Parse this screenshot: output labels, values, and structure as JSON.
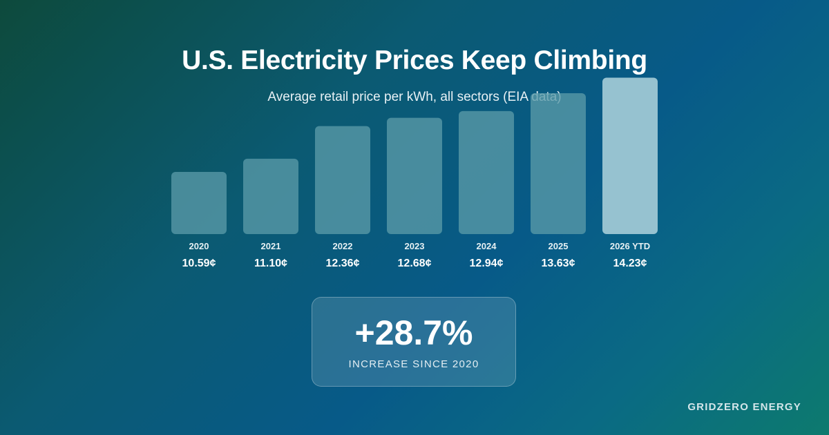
{
  "header": {
    "title": "U.S. Electricity Prices Keep Climbing",
    "subtitle": "Average retail price per kWh, all sectors (EIA data)"
  },
  "chart_data": {
    "type": "bar",
    "categories": [
      "2020",
      "2021",
      "2022",
      "2023",
      "2024",
      "2025",
      "2026 YTD"
    ],
    "values": [
      10.59,
      11.1,
      12.36,
      12.68,
      12.94,
      13.63,
      14.23
    ],
    "value_labels": [
      "10.59¢",
      "11.10¢",
      "12.36¢",
      "12.68¢",
      "12.94¢",
      "13.63¢",
      "14.23¢"
    ],
    "unit": "¢",
    "highlight_index": 6,
    "colors": {
      "bar": "#5a9aa8",
      "highlight_bar": "#96c2d0"
    },
    "grid": false,
    "legend": "none"
  },
  "stat": {
    "value": "+28.7%",
    "label": "INCREASE SINCE 2020"
  },
  "brand": {
    "name": "GRIDZERO ENERGY"
  }
}
